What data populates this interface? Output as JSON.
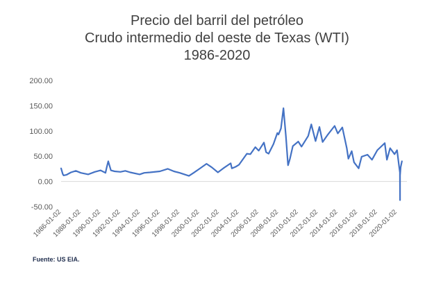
{
  "chart_data": {
    "type": "line",
    "title_lines": [
      "Precio del barril del petróleo",
      "Crudo intermedio del oeste de Texas (WTI)",
      "1986-2020"
    ],
    "source_note": "Fuente: US EIA.",
    "y_ticks": [
      "200.00",
      "150.00",
      "100.00",
      "50.00",
      "0.00",
      "-50.00"
    ],
    "x_ticks": [
      "1986-01-02",
      "1988-01-02",
      "1990-01-02",
      "1992-01-02",
      "1994-01-02",
      "1996-01-02",
      "1998-01-02",
      "2000-01-02",
      "2002-01-02",
      "2004-01-02",
      "2006-01-02",
      "2008-01-02",
      "2010-01-02",
      "2012-01-02",
      "2014-01-02",
      "2016-01-02",
      "2018-01-02",
      "2020-01-02"
    ],
    "ylim": [
      -50,
      200
    ],
    "xlim": [
      "1986-01-02",
      "2020-12-31"
    ],
    "grid": false,
    "legend": "none",
    "series": [
      {
        "color": "#4472c4",
        "x": [
          "1986-01-02",
          "1986-03-01",
          "1986-04-01",
          "1986-07-15",
          "1987-01-02",
          "1987-07-01",
          "1988-01-02",
          "1988-10-01",
          "1989-06-01",
          "1990-01-02",
          "1990-07-01",
          "1990-08-15",
          "1990-10-11",
          "1991-01-17",
          "1991-06-01",
          "1992-01-02",
          "1992-07-01",
          "1993-01-02",
          "1993-12-15",
          "1994-06-01",
          "1995-01-02",
          "1996-01-02",
          "1996-10-15",
          "1997-06-01",
          "1998-01-02",
          "1998-12-10",
          "1999-06-01",
          "2000-01-02",
          "2000-09-20",
          "2001-04-01",
          "2001-11-15",
          "2002-06-01",
          "2003-03-01",
          "2003-04-15",
          "2003-09-01",
          "2004-01-02",
          "2004-10-20",
          "2005-03-01",
          "2005-08-30",
          "2006-01-02",
          "2006-07-14",
          "2006-10-01",
          "2007-01-02",
          "2007-07-01",
          "2007-11-20",
          "2008-01-02",
          "2008-04-01",
          "2008-07-03",
          "2008-10-01",
          "2008-12-21",
          "2009-03-01",
          "2009-06-15",
          "2010-01-02",
          "2010-05-01",
          "2011-01-02",
          "2011-04-29",
          "2011-10-01",
          "2012-02-24",
          "2012-06-20",
          "2013-01-02",
          "2013-09-06",
          "2014-01-02",
          "2014-06-20",
          "2014-12-01",
          "2015-01-28",
          "2015-06-01",
          "2015-08-24",
          "2016-02-11",
          "2016-06-01",
          "2017-01-02",
          "2017-06-20",
          "2018-01-02",
          "2018-10-03",
          "2018-12-24",
          "2019-04-20",
          "2019-10-01",
          "2020-01-02",
          "2020-03-15",
          "2020-04-17",
          "2020-04-20",
          "2020-04-22",
          "2020-05-15",
          "2020-06-30"
        ],
        "y": [
          26,
          15,
          12,
          13,
          18,
          21,
          17,
          14,
          19,
          22,
          17,
          28,
          40,
          22,
          20,
          19,
          21,
          18,
          14,
          17,
          18,
          20,
          25,
          20,
          17,
          11,
          17,
          25,
          35,
          28,
          18,
          26,
          36,
          26,
          29,
          33,
          55,
          54,
          68,
          61,
          77,
          58,
          55,
          74,
          96,
          93,
          105,
          145,
          90,
          32,
          45,
          70,
          79,
          69,
          90,
          113,
          80,
          108,
          78,
          93,
          110,
          95,
          107,
          66,
          45,
          60,
          38,
          26,
          49,
          53,
          43,
          62,
          76,
          43,
          66,
          54,
          62,
          30,
          18,
          -37,
          12,
          28,
          40
        ]
      }
    ]
  }
}
